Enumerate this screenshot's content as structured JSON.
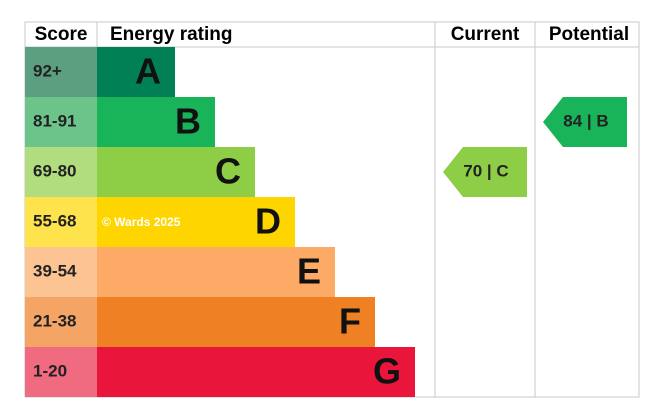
{
  "header": {
    "score": "Score",
    "rating": "Energy rating",
    "current": "Current",
    "potential": "Potential"
  },
  "bands": [
    {
      "score": "92+",
      "letter": "A",
      "color": "#008054",
      "light": "#5c9e80"
    },
    {
      "score": "81-91",
      "letter": "B",
      "color": "#19b459",
      "light": "#6cc48b"
    },
    {
      "score": "69-80",
      "letter": "C",
      "color": "#8dce46",
      "light": "#b1dd7e"
    },
    {
      "score": "55-68",
      "letter": "D",
      "color": "#ffd500",
      "light": "#ffe34d"
    },
    {
      "score": "39-54",
      "letter": "E",
      "color": "#fcaa65",
      "light": "#fdc493"
    },
    {
      "score": "21-38",
      "letter": "F",
      "color": "#ef8023",
      "light": "#f4a465"
    },
    {
      "score": "1-20",
      "letter": "G",
      "color": "#e9153b",
      "light": "#f06a80"
    }
  ],
  "watermark": "© Wards 2025",
  "current": {
    "label": "70 | C",
    "color": "#8dce46"
  },
  "potential": {
    "label": "84 | B",
    "color": "#19b459"
  }
}
